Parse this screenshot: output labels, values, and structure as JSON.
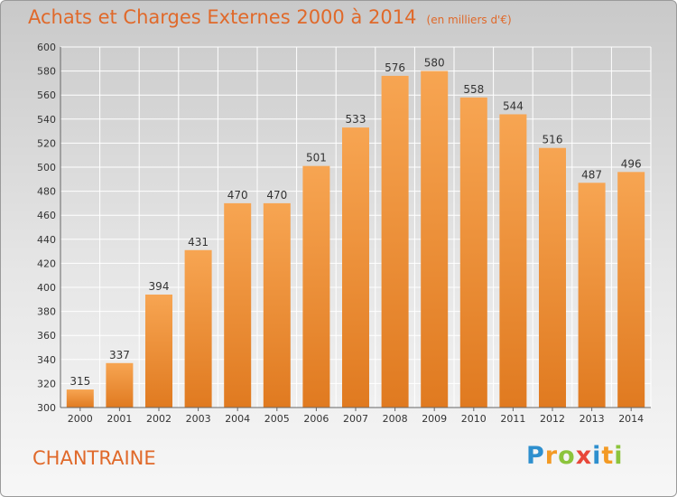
{
  "header": {
    "title": "Achats et Charges Externes 2000 à 2014",
    "subtitle": "(en milliers d'€)"
  },
  "location": "CHANTRAINE",
  "brand": {
    "name": "Proxiti",
    "letters": [
      {
        "ch": "P",
        "color": "#2e8fce"
      },
      {
        "ch": "r",
        "color": "#f39a24"
      },
      {
        "ch": "o",
        "color": "#8cc43c"
      },
      {
        "ch": "x",
        "color": "#e8473a"
      },
      {
        "ch": "i",
        "color": "#2e8fce"
      },
      {
        "ch": "t",
        "color": "#f39a24"
      },
      {
        "ch": "i",
        "color": "#8cc43c"
      }
    ]
  },
  "colors": {
    "accent": "#e0692a",
    "bar_top": "#f7a552",
    "bar_bottom": "#e07a20"
  },
  "chart_data": {
    "type": "bar",
    "title": "Achats et Charges Externes 2000 à 2014",
    "subtitle": "(en milliers d'€)",
    "categories": [
      "2000",
      "2001",
      "2002",
      "2003",
      "2004",
      "2005",
      "2006",
      "2007",
      "2008",
      "2009",
      "2010",
      "2011",
      "2012",
      "2013",
      "2014"
    ],
    "values": [
      315,
      337,
      394,
      431,
      470,
      470,
      501,
      533,
      576,
      580,
      558,
      544,
      516,
      487,
      496
    ],
    "ylim": [
      300,
      600
    ],
    "yticks": [
      300,
      320,
      340,
      360,
      380,
      400,
      420,
      440,
      460,
      480,
      500,
      520,
      540,
      560,
      580,
      600
    ],
    "grid": true,
    "legend": "none"
  }
}
